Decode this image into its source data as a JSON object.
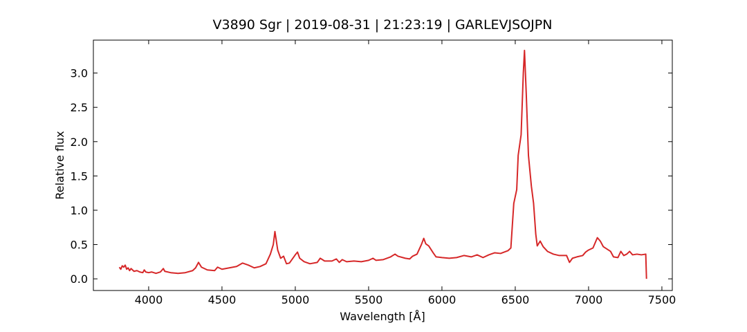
{
  "chart_data": {
    "type": "line",
    "title": "V3890 Sgr | 2019-08-31 | 21:23:19 | GARLEVJSOJPN",
    "x_label": "Wavelength [Å]",
    "y_label": "Relative flux",
    "color": "#d62728",
    "x": [
      3800,
      3810,
      3820,
      3830,
      3840,
      3850,
      3860,
      3870,
      3880,
      3900,
      3920,
      3940,
      3960,
      3970,
      3980,
      4000,
      4020,
      4050,
      4080,
      4100,
      4110,
      4150,
      4200,
      4250,
      4300,
      4320,
      4340,
      4360,
      4400,
      4450,
      4470,
      4500,
      4550,
      4600,
      4640,
      4680,
      4720,
      4760,
      4800,
      4830,
      4850,
      4861,
      4880,
      4900,
      4920,
      4940,
      4960,
      5000,
      5015,
      5030,
      5060,
      5100,
      5150,
      5170,
      5200,
      5250,
      5280,
      5300,
      5320,
      5350,
      5400,
      5450,
      5500,
      5530,
      5550,
      5600,
      5650,
      5680,
      5700,
      5750,
      5780,
      5800,
      5830,
      5860,
      5876,
      5890,
      5910,
      5940,
      5960,
      6000,
      6050,
      6100,
      6150,
      6200,
      6240,
      6280,
      6320,
      6360,
      6400,
      6450,
      6470,
      6490,
      6510,
      6520,
      6540,
      6555,
      6563,
      6575,
      6590,
      6610,
      6625,
      6640,
      6650,
      6670,
      6690,
      6720,
      6760,
      6800,
      6850,
      6870,
      6890,
      6920,
      6960,
      6980,
      7000,
      7030,
      7060,
      7080,
      7100,
      7150,
      7170,
      7200,
      7220,
      7240,
      7260,
      7280,
      7300,
      7330,
      7360,
      7390,
      7395
    ],
    "values": [
      0.17,
      0.14,
      0.19,
      0.17,
      0.2,
      0.14,
      0.16,
      0.12,
      0.15,
      0.11,
      0.12,
      0.1,
      0.09,
      0.13,
      0.1,
      0.09,
      0.1,
      0.08,
      0.1,
      0.15,
      0.11,
      0.09,
      0.08,
      0.09,
      0.12,
      0.16,
      0.24,
      0.17,
      0.13,
      0.12,
      0.17,
      0.14,
      0.16,
      0.18,
      0.23,
      0.2,
      0.16,
      0.18,
      0.22,
      0.36,
      0.5,
      0.69,
      0.42,
      0.3,
      0.33,
      0.22,
      0.23,
      0.35,
      0.39,
      0.3,
      0.25,
      0.22,
      0.24,
      0.3,
      0.26,
      0.26,
      0.29,
      0.24,
      0.28,
      0.25,
      0.26,
      0.25,
      0.27,
      0.3,
      0.27,
      0.28,
      0.32,
      0.36,
      0.33,
      0.3,
      0.29,
      0.33,
      0.36,
      0.5,
      0.59,
      0.51,
      0.48,
      0.38,
      0.32,
      0.31,
      0.3,
      0.31,
      0.34,
      0.32,
      0.35,
      0.31,
      0.35,
      0.38,
      0.37,
      0.41,
      0.45,
      1.1,
      1.3,
      1.8,
      2.1,
      3.0,
      3.33,
      2.7,
      1.8,
      1.35,
      1.1,
      0.65,
      0.48,
      0.55,
      0.47,
      0.4,
      0.36,
      0.34,
      0.34,
      0.24,
      0.3,
      0.32,
      0.34,
      0.39,
      0.42,
      0.45,
      0.6,
      0.55,
      0.47,
      0.4,
      0.32,
      0.31,
      0.4,
      0.34,
      0.36,
      0.4,
      0.35,
      0.36,
      0.35,
      0.36,
      0.0
    ],
    "xlim": [
      3623,
      7571
    ],
    "ylim": [
      -0.17,
      3.48
    ],
    "xticks": [
      4000,
      4500,
      5000,
      5500,
      6000,
      6500,
      7000,
      7500
    ],
    "yticks": [
      {
        "value": 0,
        "label": "0.0"
      },
      0.5,
      {
        "value": 1,
        "label": "1.0"
      },
      1.5,
      {
        "value": 2,
        "label": "2.0"
      },
      2.5,
      {
        "value": 3,
        "label": "3.0"
      }
    ]
  }
}
